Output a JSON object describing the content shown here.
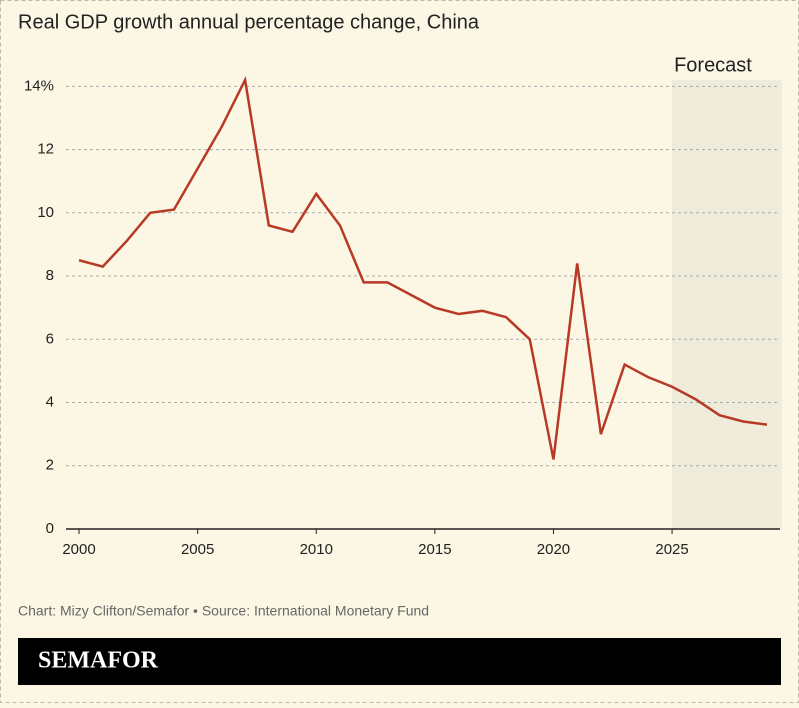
{
  "chart_data": {
    "type": "line",
    "title": "Real GDP growth annual percentage change, China",
    "x": [
      2000,
      2001,
      2002,
      2003,
      2004,
      2005,
      2006,
      2007,
      2008,
      2009,
      2010,
      2011,
      2012,
      2013,
      2014,
      2015,
      2016,
      2017,
      2018,
      2019,
      2020,
      2021,
      2022,
      2023,
      2024,
      2025,
      2026,
      2027,
      2028,
      2029
    ],
    "series": [
      {
        "color": "#b83a26",
        "values": [
          8.5,
          8.3,
          9.1,
          10.0,
          10.1,
          11.4,
          12.7,
          14.2,
          9.6,
          9.4,
          10.6,
          9.6,
          7.8,
          7.8,
          7.4,
          7.0,
          6.8,
          6.9,
          6.7,
          6.0,
          2.2,
          8.4,
          3.0,
          5.2,
          4.8,
          4.5,
          4.1,
          3.6,
          3.4,
          3.3
        ]
      }
    ],
    "xlim": [
      1999.45,
      2029.55
    ],
    "xticks": [
      2000,
      2005,
      2010,
      2015,
      2020,
      2025
    ],
    "ylim": [
      0,
      14.2
    ],
    "yticks": [
      0,
      2,
      4,
      6,
      8,
      10,
      12,
      {
        "value": 14,
        "label": "14%"
      }
    ],
    "grid": true,
    "forecast": {
      "label": "Forecast",
      "from": 2025
    },
    "source": "Chart: Mizy Clifton/Semafor • Source: International Monetary Fund",
    "brand": "SEMAFOR"
  }
}
